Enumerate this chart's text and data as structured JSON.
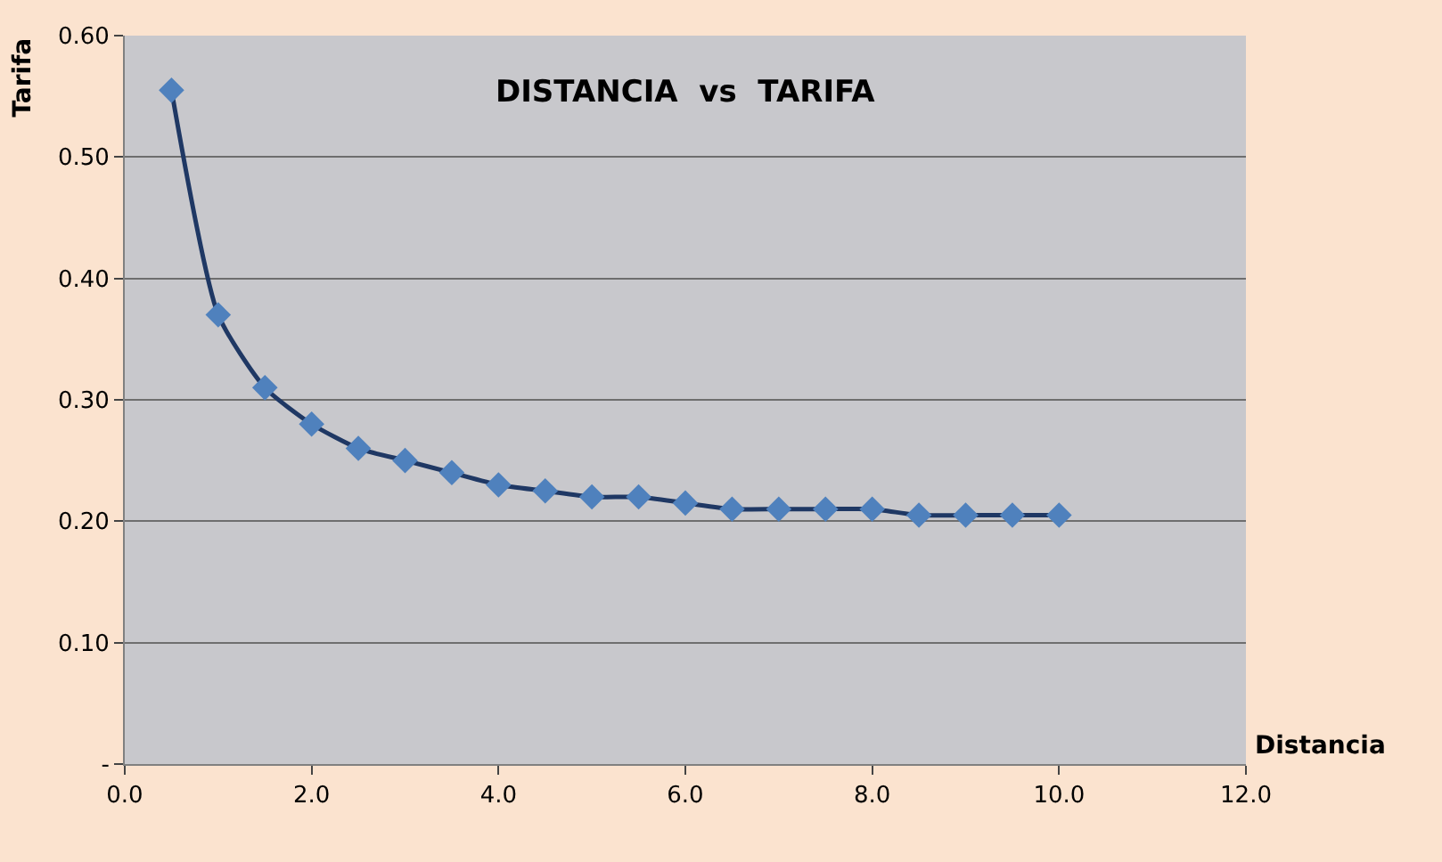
{
  "chart_data": {
    "type": "line",
    "title": "DISTANCIA  vs  TARIFA",
    "xlabel": "Distancia",
    "ylabel": "Tarifa",
    "x": [
      0.5,
      1.0,
      1.5,
      2.0,
      2.5,
      3.0,
      3.5,
      4.0,
      4.5,
      5.0,
      5.5,
      6.0,
      6.5,
      7.0,
      7.5,
      8.0,
      8.5,
      9.0,
      9.5,
      10.0
    ],
    "series": [
      {
        "color": "#4f81bd",
        "values": [
          0.555,
          0.37,
          0.31,
          0.28,
          0.26,
          0.25,
          0.24,
          0.23,
          0.225,
          0.22,
          0.22,
          0.215,
          0.21,
          0.21,
          0.21,
          0.21,
          0.205,
          0.205,
          0.205,
          0.205
        ]
      }
    ],
    "xlim": [
      0,
      12
    ],
    "xticks": [
      {
        "value": 0,
        "label": "0.0"
      },
      {
        "value": 2,
        "label": "2.0"
      },
      {
        "value": 4,
        "label": "4.0"
      },
      {
        "value": 6,
        "label": "6.0"
      },
      {
        "value": 8,
        "label": "8.0"
      },
      {
        "value": 10,
        "label": "10.0"
      },
      {
        "value": 12,
        "label": "12.0"
      }
    ],
    "ylim": [
      0,
      0.6
    ],
    "yticks": [
      {
        "value": 0,
        "label": "-"
      },
      {
        "value": 0.1,
        "label": "0.10"
      },
      {
        "value": 0.2,
        "label": "0.20"
      },
      {
        "value": 0.3,
        "label": "0.30"
      },
      {
        "value": 0.4,
        "label": "0.40"
      },
      {
        "value": 0.5,
        "label": "0.50"
      },
      {
        "value": 0.6,
        "label": "0.60"
      }
    ],
    "grid": "y",
    "marker": "diamond",
    "line_style": "solid",
    "legend": false
  }
}
